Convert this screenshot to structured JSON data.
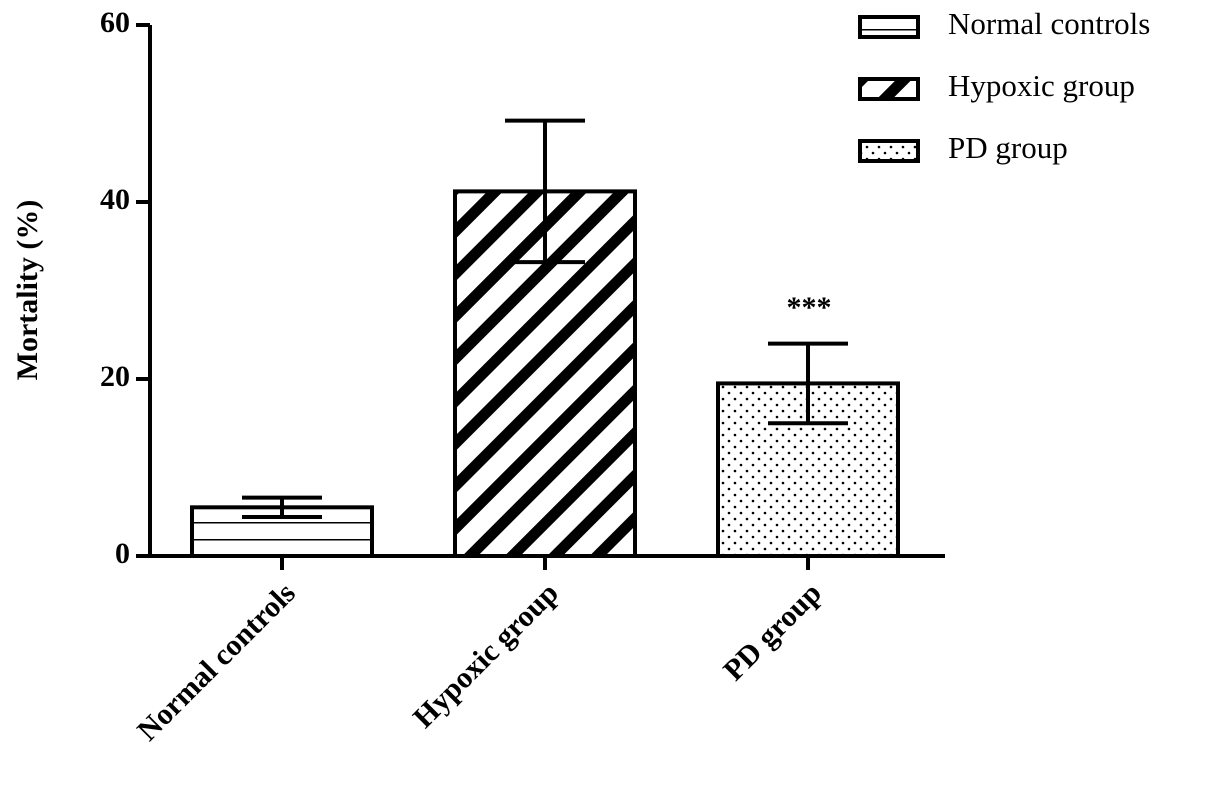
{
  "chart_data": {
    "type": "bar",
    "y_label": "Mortality (%)",
    "categories": [
      "Normal controls",
      "Hypoxic group",
      "PD group"
    ],
    "values": [
      5.5,
      41.2,
      19.5
    ],
    "errors": [
      1.1,
      8,
      4.5
    ],
    "patterns": [
      "horizontal",
      "diagonal",
      "dots"
    ],
    "color": "#000000",
    "ylim": [
      0,
      60
    ],
    "yticks": [
      0,
      20,
      40,
      60
    ],
    "annotation": "***",
    "legend": "top-right"
  }
}
